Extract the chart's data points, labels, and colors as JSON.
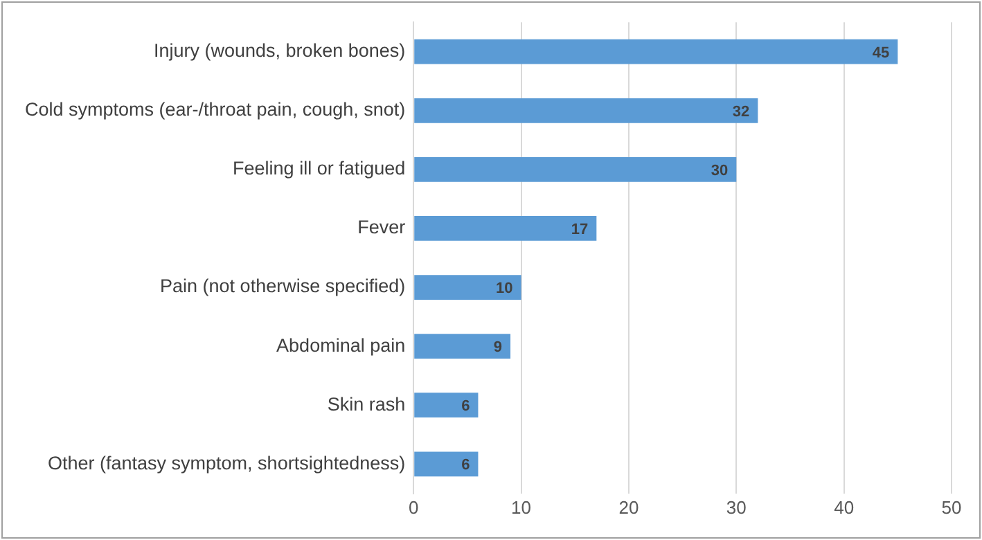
{
  "chart_data": {
    "type": "bar",
    "orientation": "horizontal",
    "categories": [
      "Injury (wounds, broken bones)",
      "Cold symptoms (ear-/throat pain, cough, snot)",
      "Feeling ill or fatigued",
      "Fever",
      "Pain (not otherwise specified)",
      "Abdominal pain",
      "Skin rash",
      "Other (fantasy symptom, shortsightedness)"
    ],
    "values": [
      45,
      32,
      30,
      17,
      10,
      9,
      6,
      6
    ],
    "color": "#5b9bd5",
    "xlim": [
      0,
      50
    ],
    "xticks": [
      0,
      10,
      20,
      30,
      40,
      50
    ],
    "grid": "x",
    "data_labels": true,
    "legend": false
  }
}
